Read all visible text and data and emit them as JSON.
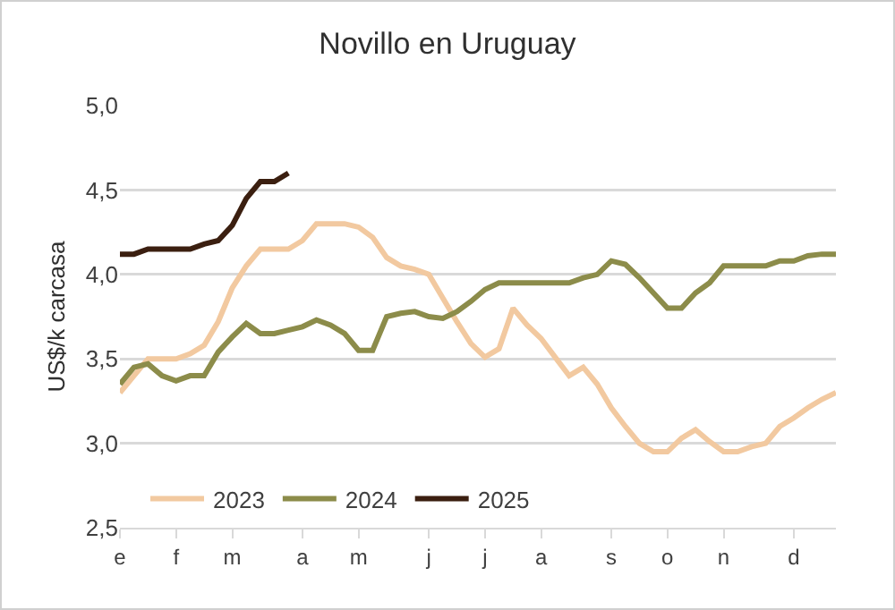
{
  "chart_data": {
    "type": "line",
    "title": "Novillo en Uruguay",
    "ylabel": "US$/k carcasa",
    "categories": [
      "e",
      null,
      null,
      null,
      "f",
      null,
      null,
      null,
      "m",
      null,
      null,
      null,
      null,
      "a",
      null,
      null,
      null,
      "m",
      null,
      null,
      null,
      null,
      "j",
      null,
      null,
      null,
      "j",
      null,
      null,
      null,
      "a",
      null,
      null,
      null,
      null,
      "s",
      null,
      null,
      null,
      "o",
      null,
      null,
      null,
      "n",
      null,
      null,
      null,
      null,
      "d",
      null,
      null,
      null
    ],
    "ylim": [
      2.5,
      5
    ],
    "yticks": [
      {
        "value": 2.5,
        "label": "2,5"
      },
      {
        "value": 3,
        "label": "3,0"
      },
      {
        "value": 3.5,
        "label": "3,5"
      },
      {
        "value": 4,
        "label": "4,0"
      },
      {
        "value": 4.5,
        "label": "4,5"
      },
      {
        "value": 5,
        "label": "5,0"
      }
    ],
    "grid": "y",
    "legend": "bottom",
    "marker": "none",
    "line_style": "solid",
    "series": [
      {
        "name": "2023",
        "color": "#f2c9a0",
        "values": [
          3.3,
          3.4,
          3.5,
          3.5,
          3.5,
          3.53,
          3.58,
          3.72,
          3.92,
          4.05,
          4.15,
          4.15,
          4.15,
          4.2,
          4.3,
          4.3,
          4.3,
          4.28,
          4.22,
          4.1,
          4.05,
          4.03,
          4.0,
          3.86,
          3.72,
          3.59,
          3.51,
          3.56,
          3.8,
          3.7,
          3.62,
          3.51,
          3.4,
          3.45,
          3.35,
          3.21,
          3.1,
          3.0,
          2.95,
          2.95,
          3.03,
          3.08,
          3.01,
          2.95,
          2.95,
          2.98,
          3.0,
          3.1,
          3.15,
          3.21,
          3.26,
          3.3
        ]
      },
      {
        "name": "2024",
        "color": "#8c8c4a",
        "values": [
          3.35,
          3.45,
          3.47,
          3.4,
          3.37,
          3.4,
          3.4,
          3.54,
          3.63,
          3.71,
          3.65,
          3.65,
          3.67,
          3.69,
          3.73,
          3.7,
          3.65,
          3.55,
          3.55,
          3.75,
          3.77,
          3.78,
          3.75,
          3.74,
          3.78,
          3.84,
          3.91,
          3.95,
          3.95,
          3.95,
          3.95,
          3.95,
          3.95,
          3.98,
          4.0,
          4.08,
          4.06,
          3.98,
          3.89,
          3.8,
          3.8,
          3.89,
          3.95,
          4.05,
          4.05,
          4.05,
          4.05,
          4.08,
          4.08,
          4.11,
          4.12,
          4.12
        ]
      },
      {
        "name": "2025",
        "color": "#3b1f10",
        "values": [
          4.12,
          4.12,
          4.15,
          4.15,
          4.15,
          4.15,
          4.18,
          4.2,
          4.29,
          4.45,
          4.55,
          4.55,
          4.6,
          null,
          null,
          null,
          null,
          null,
          null,
          null,
          null,
          null,
          null,
          null,
          null,
          null,
          null,
          null,
          null,
          null,
          null,
          null,
          null,
          null,
          null,
          null,
          null,
          null,
          null,
          null,
          null,
          null,
          null,
          null,
          null,
          null,
          null,
          null,
          null,
          null,
          null,
          null
        ]
      }
    ]
  }
}
